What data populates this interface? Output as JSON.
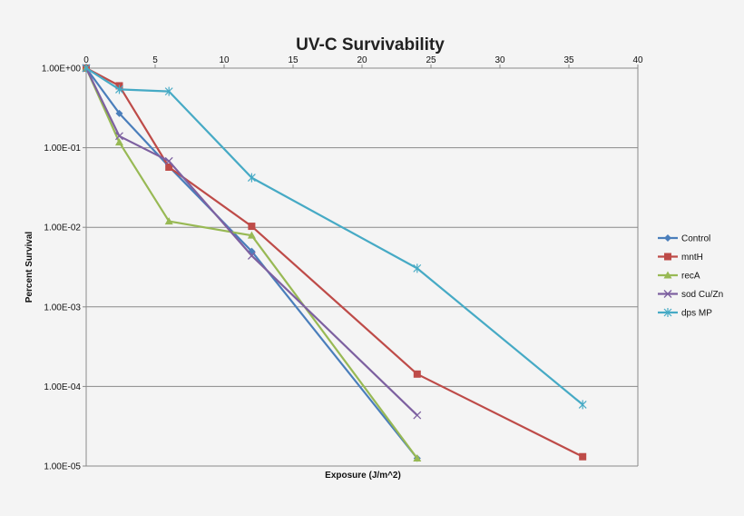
{
  "chart_data": {
    "type": "line",
    "title": "UV-C Survivability",
    "xlabel": "Exposure (J/m^2)",
    "ylabel": "Percent Survival",
    "x_scale": "linear",
    "y_scale": "log",
    "xlim": [
      0,
      40
    ],
    "ylim": [
      1e-05,
      1
    ],
    "x_ticks": [
      0,
      5,
      10,
      15,
      20,
      25,
      30,
      35,
      40
    ],
    "y_ticks": [
      {
        "value": 1,
        "label": "1.00E+00"
      },
      {
        "value": 0.1,
        "label": "1.00E-01"
      },
      {
        "value": 0.01,
        "label": "1.00E-02"
      },
      {
        "value": 0.001,
        "label": "1.00E-03"
      },
      {
        "value": 0.0001,
        "label": "1.00E-04"
      },
      {
        "value": 1e-05,
        "label": "1.00E-05"
      }
    ],
    "grid": "horizontal",
    "legend_position": "right",
    "series": [
      {
        "name": "Control",
        "color": "#4a7ebb",
        "marker": "diamond",
        "points": [
          [
            0,
            1.0
          ],
          [
            2.4,
            0.27
          ],
          [
            6,
            0.058
          ],
          [
            12,
            0.005
          ],
          [
            24,
            1.25e-05
          ]
        ]
      },
      {
        "name": "mntH",
        "color": "#be4b48",
        "marker": "square",
        "points": [
          [
            0,
            1.0
          ],
          [
            2.4,
            0.6
          ],
          [
            6,
            0.057
          ],
          [
            12,
            0.0103
          ],
          [
            24,
            0.000143
          ],
          [
            36,
            1.31e-05
          ]
        ]
      },
      {
        "name": "recA",
        "color": "#98b954",
        "marker": "triangle",
        "points": [
          [
            0,
            1.0
          ],
          [
            2.4,
            0.117
          ],
          [
            6,
            0.0119
          ],
          [
            12,
            0.0079
          ],
          [
            24,
            1.25e-05
          ]
        ]
      },
      {
        "name": "sod Cu/Zn",
        "color": "#7d60a0",
        "marker": "x",
        "points": [
          [
            0,
            1.0
          ],
          [
            2.4,
            0.14
          ],
          [
            6,
            0.068
          ],
          [
            12,
            0.0044
          ],
          [
            24,
            4.35e-05
          ]
        ]
      },
      {
        "name": "dps MP",
        "color": "#46aac5",
        "marker": "star",
        "points": [
          [
            0,
            1.0
          ],
          [
            2.4,
            0.54
          ],
          [
            6,
            0.51
          ],
          [
            12,
            0.042
          ],
          [
            24,
            0.00305
          ],
          [
            36,
            5.91e-05
          ]
        ]
      }
    ]
  }
}
